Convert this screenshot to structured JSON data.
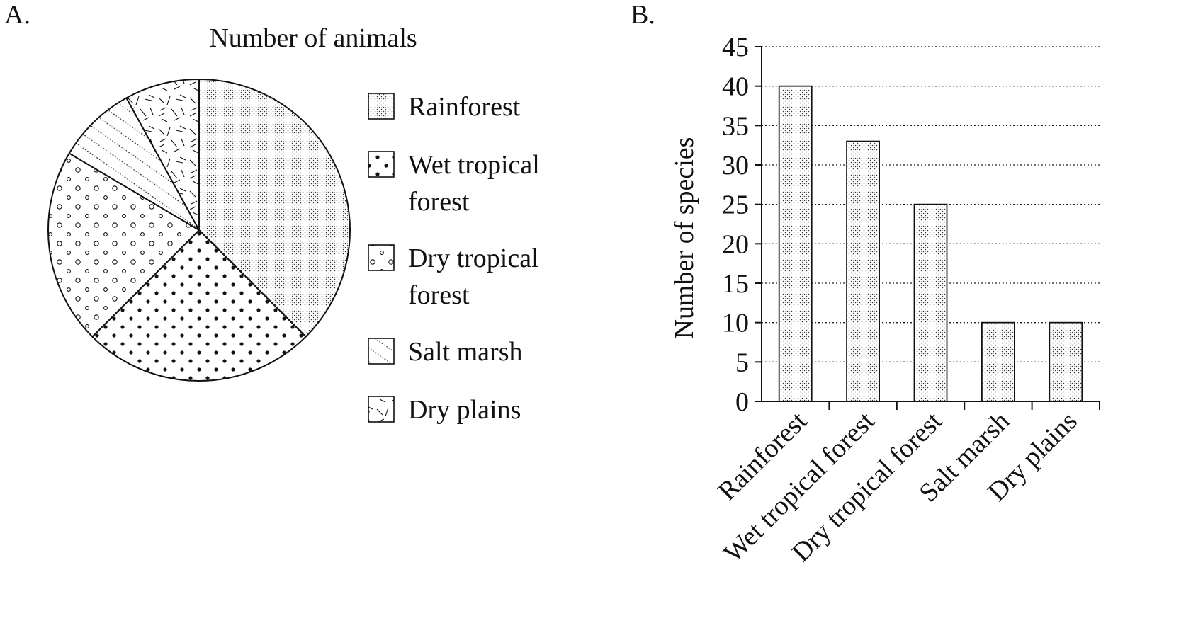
{
  "chart_data": [
    {
      "panel_label": "A.",
      "type": "pie",
      "title": "Number of animals",
      "categories": [
        "Rainforest",
        "Wet tropical forest",
        "Dry tropical forest",
        "Salt marsh",
        "Dry plains"
      ],
      "values": [
        37.5,
        25.0,
        21.0,
        8.5,
        8.0
      ],
      "legend": [
        {
          "label": "Rainforest",
          "pattern": "fine-stipple"
        },
        {
          "label": "Wet tropical\nforest",
          "pattern": "large-dots"
        },
        {
          "label": "Dry tropical\nforest",
          "pattern": "open-circles"
        },
        {
          "label": "Salt marsh",
          "pattern": "dotted-diagonals"
        },
        {
          "label": "Dry plains",
          "pattern": "random-strokes"
        }
      ],
      "legend_position": "right"
    },
    {
      "panel_label": "B.",
      "type": "bar",
      "categories": [
        "Rainforest",
        "Wet tropical forest",
        "Dry tropical forest",
        "Salt marsh",
        "Dry plains"
      ],
      "values": [
        40,
        33,
        25,
        10,
        10
      ],
      "xlabel": "",
      "ylabel": "Number of species",
      "ylim": [
        0,
        45
      ],
      "yticks": [
        0,
        5,
        10,
        15,
        20,
        25,
        30,
        35,
        40,
        45
      ],
      "grid": "horizontal-dotted"
    }
  ]
}
